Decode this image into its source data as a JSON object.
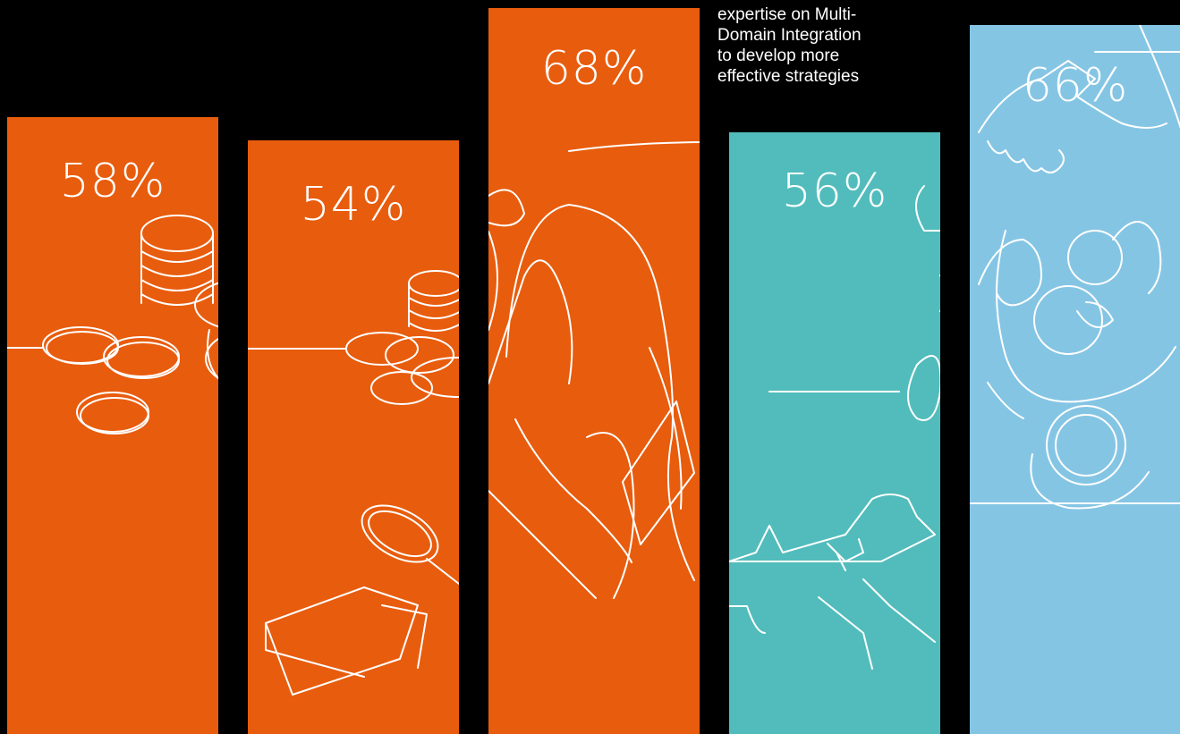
{
  "chart_data": {
    "type": "bar",
    "categories": [
      "",
      "",
      "",
      "",
      ""
    ],
    "values": [
      58,
      54,
      68,
      56,
      66
    ],
    "labels": [
      "58%",
      "54%",
      "68%",
      "56%",
      "66%"
    ],
    "colors": [
      "#e85c0d",
      "#e85c0d",
      "#e85c0d",
      "#52bcbc",
      "#85c5e4"
    ],
    "illustrations": [
      "coins-icon",
      "coins-magnifier-icon",
      "person-reading-icon",
      "aircraft-icon",
      "meeting-handshake-icon"
    ],
    "annotation": "and share their\nexpertise on Multi-\nDomain Integration\nto develop more\neffective strategies",
    "ylim": [
      0,
      70
    ],
    "grid": false,
    "legend": "none"
  }
}
